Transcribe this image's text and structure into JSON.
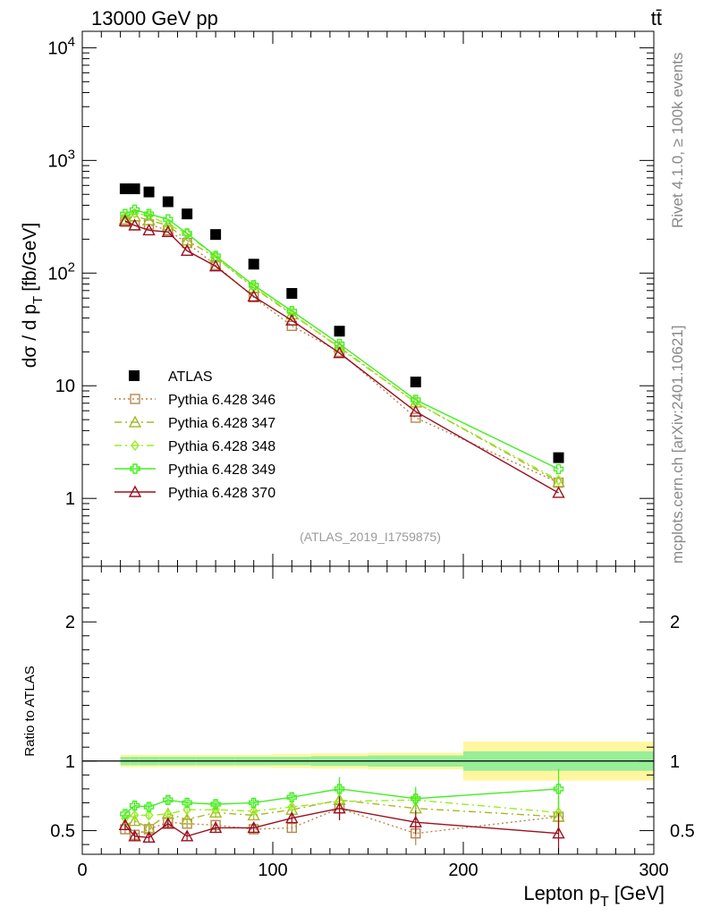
{
  "header": {
    "left": "13000 GeV pp",
    "right": "tt̄"
  },
  "side_text": {
    "upper": "Rivet 4.1.0, ≥ 100k events",
    "lower": "mcplots.cern.ch [arXiv:2401.10621]"
  },
  "watermark": "(ATLAS_2019_I1759875)",
  "chart_data": {
    "type": "line",
    "scale": "log",
    "ylabel": "dσ / d p_T [fb/GeV]",
    "ylabel_main": "dσ / d p",
    "ylabel_sub": "T",
    "ylabel_unit": "[fb/GeV]",
    "xlabel": "Lepton p_T [GeV]",
    "xlabel_main": "Lepton p",
    "xlabel_sub": "T",
    "xlabel_unit": "[GeV]",
    "ratio_ylabel": "Ratio to ATLAS",
    "xlim": [
      0,
      300
    ],
    "ylim": [
      0.25,
      14000
    ],
    "ratio_ylim": [
      0.33,
      2.4
    ],
    "x_tick_labels": [
      "0",
      "100",
      "200",
      "300"
    ],
    "y_tick_labels": [
      "1",
      "10",
      "10^2",
      "10^3",
      "10^4"
    ],
    "ratio_tick_labels": [
      "0.5",
      "1",
      "2"
    ],
    "legend_position": "lower-left",
    "bins": [
      [
        20,
        25
      ],
      [
        25,
        30
      ],
      [
        30,
        40
      ],
      [
        40,
        50
      ],
      [
        50,
        60
      ],
      [
        60,
        80
      ],
      [
        80,
        100
      ],
      [
        100,
        120
      ],
      [
        120,
        150
      ],
      [
        150,
        200
      ],
      [
        200,
        300
      ]
    ],
    "x": [
      22.5,
      27.5,
      35,
      45,
      55,
      70,
      90,
      110,
      135,
      175,
      250
    ],
    "series": [
      {
        "name": "ATLAS",
        "color": "#000000",
        "marker": "square",
        "style": "none",
        "values": [
          560,
          560,
          525,
          430,
          335,
          220,
          120,
          66,
          30.5,
          10.8,
          2.3
        ],
        "band_inner": [
          0.03,
          0.03,
          0.03,
          0.03,
          0.03,
          0.03,
          0.03,
          0.03,
          0.035,
          0.04,
          0.07
        ],
        "band_outer": [
          0.045,
          0.045,
          0.045,
          0.045,
          0.045,
          0.045,
          0.045,
          0.05,
          0.055,
          0.06,
          0.14
        ]
      },
      {
        "name": "Pythia 6.428 346",
        "color": "#b8874a",
        "marker": "open-square",
        "style": "dotted",
        "values": [
          285,
          265,
          270,
          240,
          185,
          118,
          61,
          34,
          20,
          5.2,
          1.38
        ],
        "ratio": [
          0.51,
          0.47,
          0.51,
          0.56,
          0.55,
          0.54,
          0.51,
          0.52,
          0.66,
          0.48,
          0.6
        ]
      },
      {
        "name": "Pythia 6.428 347",
        "color": "#a8b82a",
        "marker": "open-triangle",
        "style": "dashdot",
        "values": [
          300,
          320,
          295,
          265,
          195,
          138,
          74,
          43,
          22,
          7.1,
          1.4
        ],
        "ratio": [
          0.54,
          0.57,
          0.52,
          0.62,
          0.58,
          0.63,
          0.61,
          0.65,
          0.72,
          0.66,
          0.6
        ]
      },
      {
        "name": "Pythia 6.428 348",
        "color": "#99ee22",
        "marker": "open-diamond",
        "style": "dashdot",
        "values": [
          320,
          340,
          325,
          268,
          225,
          138,
          75,
          44,
          21.5,
          7.1,
          1.45
        ],
        "ratio": [
          0.59,
          0.61,
          0.61,
          0.62,
          0.65,
          0.65,
          0.64,
          0.67,
          0.71,
          0.72,
          0.63
        ]
      },
      {
        "name": "Pythia 6.428 349",
        "color": "#44ee22",
        "marker": "open-cross",
        "style": "solid",
        "values": [
          335,
          365,
          335,
          300,
          225,
          142,
          78,
          46,
          23.5,
          7.5,
          1.82
        ],
        "ratio": [
          0.62,
          0.68,
          0.67,
          0.72,
          0.7,
          0.69,
          0.7,
          0.74,
          0.8,
          0.73,
          0.8
        ]
      },
      {
        "name": "Pythia 6.428 370",
        "color": "#9a1020",
        "marker": "open-triangle",
        "style": "solid",
        "values": [
          290,
          265,
          240,
          232,
          158,
          115,
          62,
          38,
          19.5,
          5.9,
          1.12
        ],
        "ratio": [
          0.54,
          0.46,
          0.45,
          0.55,
          0.46,
          0.52,
          0.52,
          0.59,
          0.66,
          0.56,
          0.48
        ]
      }
    ]
  }
}
